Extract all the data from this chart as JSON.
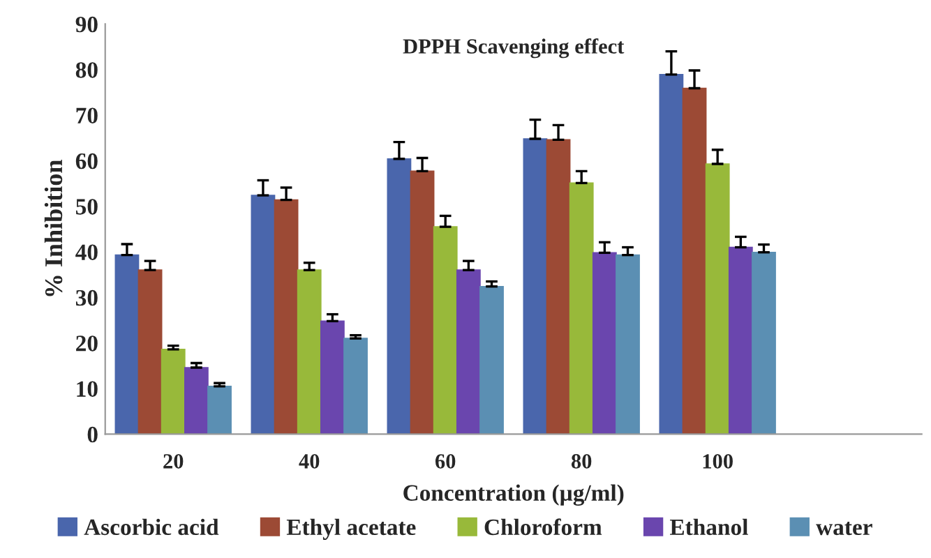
{
  "chart_data": {
    "type": "bar",
    "title": "DPPH Scavenging effect",
    "xlabel": "Concentration (µg/ml)",
    "ylabel": "% Inhibition",
    "categories": [
      "20",
      "40",
      "60",
      "80",
      "100",
      null
    ],
    "series": [
      {
        "name": "Ascorbic acid",
        "color": "#4a66ac",
        "values": [
          39.3,
          52.4,
          60.4,
          64.8,
          78.9,
          null
        ],
        "errors": [
          [
            39.3,
            41.7
          ],
          [
            52.4,
            55.7
          ],
          [
            60.4,
            64.1
          ],
          [
            64.8,
            69.0
          ],
          [
            78.9,
            84.0
          ],
          null
        ]
      },
      {
        "name": "Ethyl acetate",
        "color": "#9c4a35",
        "values": [
          36.0,
          51.4,
          57.7,
          64.6,
          75.9,
          null
        ],
        "errors": [
          [
            36.0,
            38.0
          ],
          [
            51.4,
            54.1
          ],
          [
            57.7,
            60.6
          ],
          [
            64.6,
            67.8
          ],
          [
            75.9,
            79.8
          ],
          null
        ]
      },
      {
        "name": "Chloroform",
        "color": "#98b93a",
        "values": [
          18.6,
          36.0,
          45.5,
          55.1,
          59.3,
          null
        ],
        "errors": [
          [
            18.6,
            19.4
          ],
          [
            36.0,
            37.6
          ],
          [
            45.5,
            47.9
          ],
          [
            55.1,
            57.7
          ],
          [
            59.3,
            62.4
          ],
          null
        ]
      },
      {
        "name": "Ethanol",
        "color": "#6a46ae",
        "values": [
          14.6,
          24.8,
          36.0,
          39.8,
          41.0,
          null
        ],
        "errors": [
          [
            14.6,
            15.6
          ],
          [
            24.8,
            26.3
          ],
          [
            36.0,
            38.0
          ],
          [
            39.8,
            42.1
          ],
          [
            41.0,
            43.3
          ],
          null
        ]
      },
      {
        "name": "water",
        "color": "#5b8fb3",
        "values": [
          10.5,
          21.0,
          32.4,
          39.3,
          39.9,
          null
        ],
        "errors": [
          [
            10.5,
            11.2
          ],
          [
            21.0,
            21.7
          ],
          [
            32.4,
            33.5
          ],
          [
            39.3,
            41.0
          ],
          [
            39.9,
            41.6
          ],
          null
        ]
      }
    ],
    "ylim": [
      0,
      90
    ],
    "yticks": [
      0,
      10,
      20,
      30,
      40,
      50,
      60,
      70,
      80,
      90
    ],
    "grid": false,
    "legend": "bottom"
  }
}
